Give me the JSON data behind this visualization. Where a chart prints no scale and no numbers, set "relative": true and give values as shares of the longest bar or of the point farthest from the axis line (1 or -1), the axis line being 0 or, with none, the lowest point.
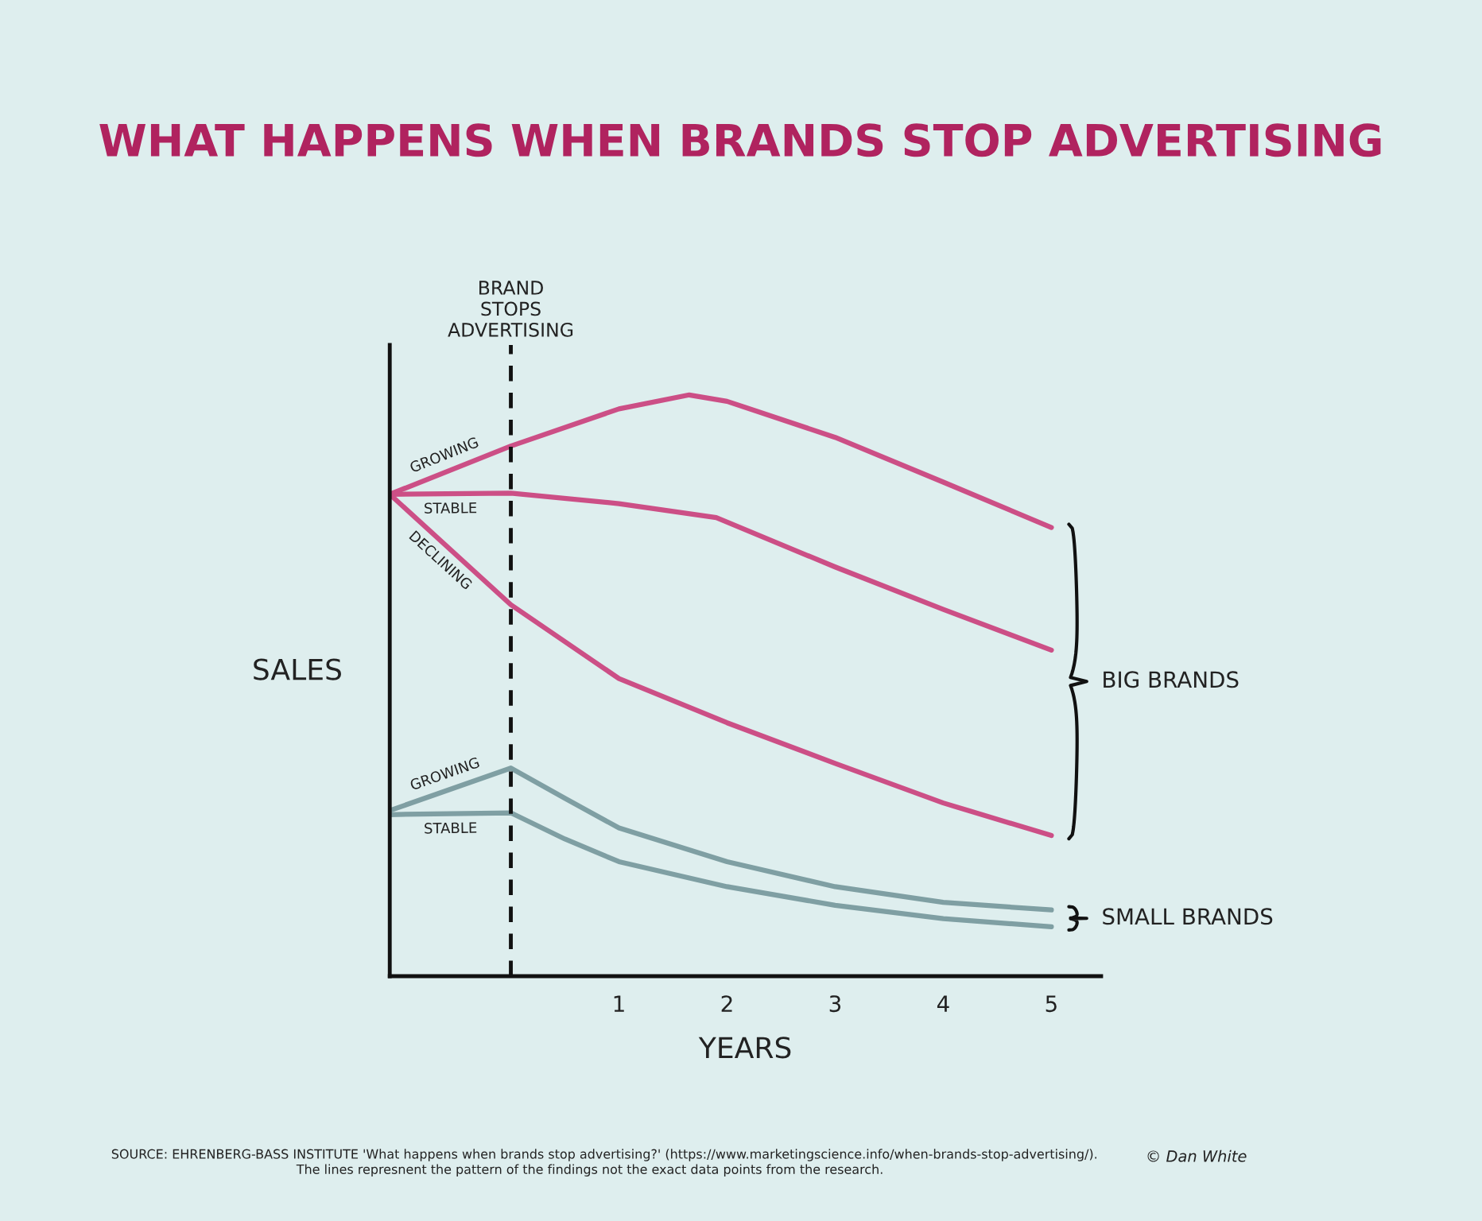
{
  "chart_data": {
    "type": "line",
    "title": "WHAT HAPPENS WHEN BRANDS STOP ADVERTISING",
    "xlabel": "YEARS",
    "ylabel": "SALES",
    "relative": true,
    "xlim": [
      -1.12,
      5.46
    ],
    "xticks": [
      1,
      2,
      3,
      4,
      5
    ],
    "grid": false,
    "legend": false,
    "marker": "none",
    "line_style": "solid",
    "ref_lines": [
      {
        "axis": "x",
        "value": 0,
        "label": "BRAND\nSTOPS\nADVERTISING",
        "color": "#111111",
        "line_style": "dashed"
      }
    ],
    "series": [
      {
        "name": "GROWING",
        "color": "#cc4f86",
        "x": [
          -1.12,
          0,
          1,
          1.65,
          2,
          3,
          4,
          5
        ],
        "values": [
          0.829,
          0.912,
          0.976,
          1.0,
          0.989,
          0.927,
          0.85,
          0.772
        ]
      },
      {
        "name": "STABLE",
        "color": "#cc4f86",
        "x": [
          -1.12,
          0,
          1,
          1.9,
          3,
          4,
          5
        ],
        "values": [
          0.829,
          0.831,
          0.813,
          0.789,
          0.704,
          0.631,
          0.561
        ]
      },
      {
        "name": "DECLINING",
        "color": "#cc4f86",
        "x": [
          -1.12,
          0,
          1,
          2,
          3,
          4,
          5
        ],
        "values": [
          0.829,
          0.639,
          0.512,
          0.436,
          0.366,
          0.298,
          0.242
        ]
      },
      {
        "name": "GROWING",
        "color": "#7f9fa3",
        "x": [
          -1.12,
          0,
          0.5,
          1,
          2,
          3,
          4,
          5
        ],
        "values": [
          0.285,
          0.358,
          0.306,
          0.255,
          0.197,
          0.154,
          0.127,
          0.114
        ]
      },
      {
        "name": "STABLE",
        "color": "#7f9fa3",
        "x": [
          -1.12,
          0,
          0.5,
          1,
          2,
          3,
          4,
          5
        ],
        "values": [
          0.278,
          0.281,
          0.236,
          0.197,
          0.154,
          0.122,
          0.099,
          0.085
        ]
      }
    ],
    "annotations": [
      "BIG BRANDS",
      "SMALL BRANDS",
      "SOURCE: EHRENBERG-BASS INSTITUTE 'What happens when brands stop advertising?' (https://www.marketingscience.info/when-brands-stop-advertising/).",
      "The lines represnent the pattern of the findings not the exact data points from the research.",
      "© Dan White"
    ]
  }
}
